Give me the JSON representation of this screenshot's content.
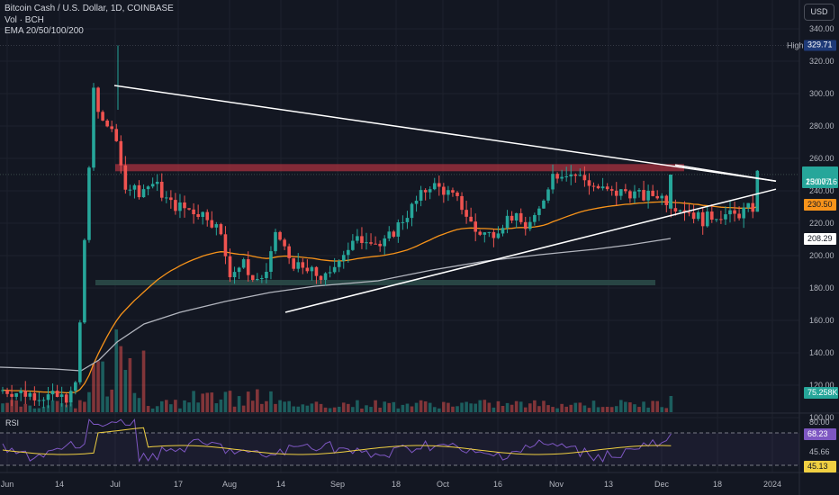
{
  "legend": {
    "symbol": "Bitcoin Cash / U.S. Dollar, 1D, COINBASE",
    "volume": "Vol · BCH",
    "ema": "EMA 20/50/100/200"
  },
  "currency_button": "USD",
  "rsi_label": "RSI",
  "price_axis": {
    "ticks": [
      "340.00",
      "320.00",
      "300.00",
      "280.00",
      "260.00",
      "240.00",
      "220.00",
      "200.00",
      "180.00",
      "160.00",
      "140.00",
      "120.00",
      "100.00"
    ],
    "high_label": "High",
    "high_value": "329.71",
    "last_price": "250.07",
    "countdown": "13:07:16",
    "ema_orange": "230.50",
    "ema_white": "208.29",
    "volume_value": "75.258K"
  },
  "rsi_axis": {
    "ticks": [
      "80.00",
      "45.66"
    ],
    "rsi_value": "68.23",
    "rsi_ma_value": "45.13"
  },
  "time_axis": [
    "Jun",
    "14",
    "Jul",
    "17",
    "Aug",
    "14",
    "Sep",
    "18",
    "Oct",
    "16",
    "Nov",
    "13",
    "Dec",
    "18",
    "2024"
  ],
  "colors": {
    "background": "#131722",
    "up": "#26a69a",
    "down": "#ef5350",
    "ema_orange": "#f7931a",
    "ema_white": "#b2b5be",
    "rsi_line": "#7e57c2",
    "rsi_ma": "#f0d042",
    "resistance_zone": "#a8323f",
    "support_zone": "#2b4a48"
  }
}
